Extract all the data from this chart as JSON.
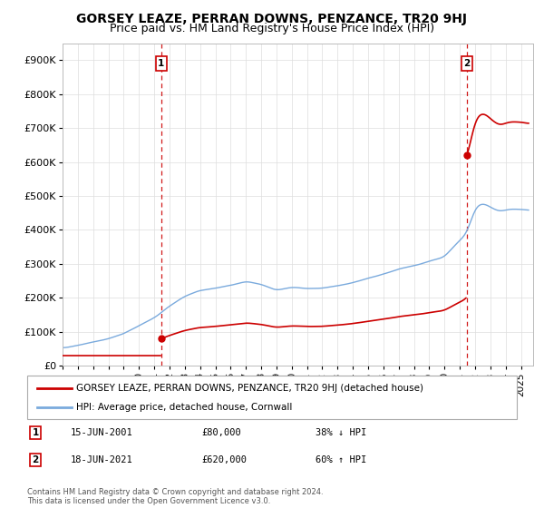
{
  "title": "GORSEY LEAZE, PERRAN DOWNS, PENZANCE, TR20 9HJ",
  "subtitle": "Price paid vs. HM Land Registry's House Price Index (HPI)",
  "ylabel_ticks": [
    "£0",
    "£100K",
    "£200K",
    "£300K",
    "£400K",
    "£500K",
    "£600K",
    "£700K",
    "£800K",
    "£900K"
  ],
  "ytick_values": [
    0,
    100000,
    200000,
    300000,
    400000,
    500000,
    600000,
    700000,
    800000,
    900000
  ],
  "ylim": [
    0,
    950000
  ],
  "xlim_start": 1995.0,
  "xlim_end": 2025.8,
  "sale1": {
    "date_num": 2001.46,
    "price": 80000,
    "label": "1"
  },
  "sale2": {
    "date_num": 2021.46,
    "price": 620000,
    "label": "2"
  },
  "legend_entries": [
    "GORSEY LEAZE, PERRAN DOWNS, PENZANCE, TR20 9HJ (detached house)",
    "HPI: Average price, detached house, Cornwall"
  ],
  "table_rows": [
    {
      "num": "1",
      "date": "15-JUN-2001",
      "price": "£80,000",
      "change": "38% ↓ HPI"
    },
    {
      "num": "2",
      "date": "18-JUN-2021",
      "price": "£620,000",
      "change": "60% ↑ HPI"
    }
  ],
  "footnote": "Contains HM Land Registry data © Crown copyright and database right 2024.\nThis data is licensed under the Open Government Licence v3.0.",
  "sale_line_color": "#cc0000",
  "hpi_line_color": "#7aaadd",
  "dashed_line_color": "#cc0000",
  "background_color": "#ffffff",
  "grid_color": "#dddddd",
  "title_fontsize": 10,
  "subtitle_fontsize": 9
}
